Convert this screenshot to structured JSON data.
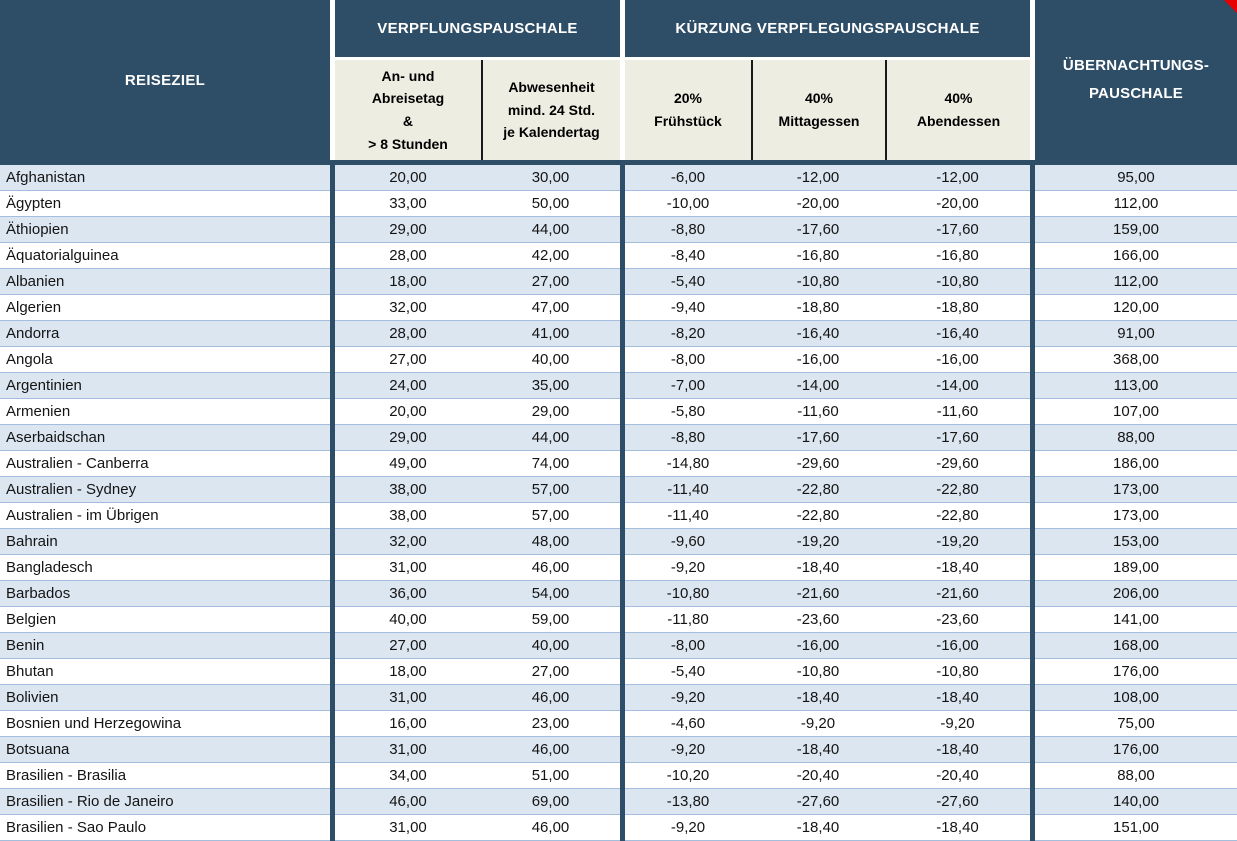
{
  "header": {
    "reiseziel": "REISEZIEL",
    "verpflegung_group": "VERPFLUNGSPAUSCHALE",
    "kuerzung_group": "KÜRZUNG VERPFLEGUNGSPAUSCHALE",
    "uebernachtung": "ÜBERNACHTUNGS-\nPAUSCHALE",
    "sub_arrival": "An- und\nAbreisetag\n&\n> 8 Stunden",
    "sub_fullday": "Abwesenheit\nmind. 24 Std.\nje Kalendertag",
    "sub_breakfast": "20%\nFrühstück",
    "sub_lunch": "40%\nMittagessen",
    "sub_dinner": "40%\nAbendessen"
  },
  "columns": [
    "Reiseziel",
    "An- und Abreisetag & > 8 Stunden",
    "Abwesenheit mind. 24 Std. je Kalendertag",
    "20% Frühstück",
    "40% Mittagessen",
    "40% Abendessen",
    "Übernachtungspauschale"
  ],
  "rows": [
    [
      "Afghanistan",
      "20,00",
      "30,00",
      "-6,00",
      "-12,00",
      "-12,00",
      "95,00"
    ],
    [
      "Ägypten",
      "33,00",
      "50,00",
      "-10,00",
      "-20,00",
      "-20,00",
      "112,00"
    ],
    [
      "Äthiopien",
      "29,00",
      "44,00",
      "-8,80",
      "-17,60",
      "-17,60",
      "159,00"
    ],
    [
      "Äquatorialguinea",
      "28,00",
      "42,00",
      "-8,40",
      "-16,80",
      "-16,80",
      "166,00"
    ],
    [
      "Albanien",
      "18,00",
      "27,00",
      "-5,40",
      "-10,80",
      "-10,80",
      "112,00"
    ],
    [
      "Algerien",
      "32,00",
      "47,00",
      "-9,40",
      "-18,80",
      "-18,80",
      "120,00"
    ],
    [
      "Andorra",
      "28,00",
      "41,00",
      "-8,20",
      "-16,40",
      "-16,40",
      "91,00"
    ],
    [
      "Angola",
      "27,00",
      "40,00",
      "-8,00",
      "-16,00",
      "-16,00",
      "368,00"
    ],
    [
      "Argentinien",
      "24,00",
      "35,00",
      "-7,00",
      "-14,00",
      "-14,00",
      "113,00"
    ],
    [
      "Armenien",
      "20,00",
      "29,00",
      "-5,80",
      "-11,60",
      "-11,60",
      "107,00"
    ],
    [
      "Aserbaidschan",
      "29,00",
      "44,00",
      "-8,80",
      "-17,60",
      "-17,60",
      "88,00"
    ],
    [
      "Australien - Canberra",
      "49,00",
      "74,00",
      "-14,80",
      "-29,60",
      "-29,60",
      "186,00"
    ],
    [
      "Australien - Sydney",
      "38,00",
      "57,00",
      "-11,40",
      "-22,80",
      "-22,80",
      "173,00"
    ],
    [
      "Australien - im Übrigen",
      "38,00",
      "57,00",
      "-11,40",
      "-22,80",
      "-22,80",
      "173,00"
    ],
    [
      "Bahrain",
      "32,00",
      "48,00",
      "-9,60",
      "-19,20",
      "-19,20",
      "153,00"
    ],
    [
      "Bangladesch",
      "31,00",
      "46,00",
      "-9,20",
      "-18,40",
      "-18,40",
      "189,00"
    ],
    [
      "Barbados",
      "36,00",
      "54,00",
      "-10,80",
      "-21,60",
      "-21,60",
      "206,00"
    ],
    [
      "Belgien",
      "40,00",
      "59,00",
      "-11,80",
      "-23,60",
      "-23,60",
      "141,00"
    ],
    [
      "Benin",
      "27,00",
      "40,00",
      "-8,00",
      "-16,00",
      "-16,00",
      "168,00"
    ],
    [
      "Bhutan",
      "18,00",
      "27,00",
      "-5,40",
      "-10,80",
      "-10,80",
      "176,00"
    ],
    [
      "Bolivien",
      "31,00",
      "46,00",
      "-9,20",
      "-18,40",
      "-18,40",
      "108,00"
    ],
    [
      "Bosnien und Herzegowina",
      "16,00",
      "23,00",
      "-4,60",
      "-9,20",
      "-9,20",
      "75,00"
    ],
    [
      "Botsuana",
      "31,00",
      "46,00",
      "-9,20",
      "-18,40",
      "-18,40",
      "176,00"
    ],
    [
      "Brasilien - Brasilia",
      "34,00",
      "51,00",
      "-10,20",
      "-20,40",
      "-20,40",
      "88,00"
    ],
    [
      "Brasilien - Rio de Janeiro",
      "46,00",
      "69,00",
      "-13,80",
      "-27,60",
      "-27,60",
      "140,00"
    ],
    [
      "Brasilien - Sao Paulo",
      "31,00",
      "46,00",
      "-9,20",
      "-18,40",
      "-18,40",
      "151,00"
    ]
  ],
  "colors": {
    "header_navy": "#2E4D66",
    "subheader_beige": "#EDEDE2",
    "row_stripe": "#DCE6F1",
    "row_line": "#A3BEDC",
    "marker_red": "#E60000",
    "text_dark": "#141414"
  },
  "icons": {
    "comment_marker": "red-corner-triangle"
  }
}
